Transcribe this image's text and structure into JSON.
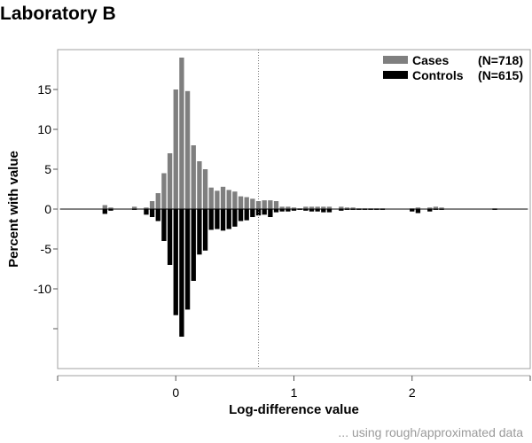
{
  "chart_data": {
    "type": "bar",
    "title": "Laboratory B",
    "xlabel": "Log-difference value",
    "ylabel": "Percent with value",
    "footnote": "... using rough/approximated data",
    "xlim": [
      -1,
      3
    ],
    "ylim": [
      -20,
      20
    ],
    "x_ticks": [
      -1,
      0,
      1,
      2,
      3
    ],
    "x_tick_labels": [
      "",
      "0",
      "1",
      "2",
      ""
    ],
    "y_ticks": [
      15,
      10,
      5,
      0,
      -5,
      -10,
      -15
    ],
    "y_tick_labels": [
      "15",
      "10",
      "5",
      "0",
      "-5",
      "-10",
      ""
    ],
    "reference_line_x": 0.7,
    "bar_width": 0.05,
    "grid": false,
    "legend_position": "top-right",
    "series": [
      {
        "name": "Cases",
        "n_label": "(N=718)",
        "color": "#7f7f7f",
        "direction": "up",
        "x": [
          -0.6,
          -0.55,
          -0.35,
          -0.25,
          -0.2,
          -0.15,
          -0.1,
          -0.05,
          0.0,
          0.05,
          0.1,
          0.15,
          0.2,
          0.25,
          0.3,
          0.35,
          0.4,
          0.45,
          0.5,
          0.55,
          0.6,
          0.65,
          0.7,
          0.75,
          0.8,
          0.85,
          0.9,
          0.95,
          1.0,
          1.05,
          1.1,
          1.15,
          1.2,
          1.25,
          1.3,
          1.4,
          1.45,
          1.5,
          1.55,
          1.6,
          1.65,
          1.7,
          1.75,
          2.0,
          2.05,
          2.15,
          2.2,
          2.25,
          2.7
        ],
        "values": [
          0.5,
          0.2,
          0.3,
          0.2,
          1.0,
          2.0,
          4.5,
          7.0,
          15.0,
          19.0,
          14.8,
          8.0,
          6.0,
          5.0,
          2.7,
          2.3,
          2.8,
          2.4,
          2.2,
          1.6,
          1.5,
          1.3,
          1.0,
          1.1,
          1.1,
          1.0,
          0.3,
          0.3,
          0.2,
          0.1,
          0.3,
          0.3,
          0.3,
          0.3,
          0.3,
          0.3,
          0.2,
          0.2,
          0.1,
          0.1,
          0.1,
          0.1,
          0.1,
          0.1,
          0.2,
          0.2,
          0.3,
          0.2,
          0.1
        ]
      },
      {
        "name": "Controls",
        "n_label": "(N=615)",
        "color": "#000000",
        "direction": "down",
        "x": [
          -0.6,
          -0.55,
          -0.35,
          -0.25,
          -0.2,
          -0.15,
          -0.1,
          -0.05,
          0.0,
          0.05,
          0.1,
          0.15,
          0.2,
          0.25,
          0.3,
          0.35,
          0.4,
          0.45,
          0.5,
          0.55,
          0.6,
          0.65,
          0.7,
          0.75,
          0.8,
          0.85,
          0.9,
          0.95,
          1.0,
          1.05,
          1.1,
          1.15,
          1.2,
          1.25,
          1.3,
          1.4,
          1.45,
          1.5,
          1.55,
          1.6,
          1.65,
          1.7,
          1.75,
          2.0,
          2.05,
          2.15,
          2.2,
          2.25,
          2.7
        ],
        "values": [
          -0.6,
          -0.2,
          -0.1,
          -0.7,
          -1.0,
          -1.5,
          -4.0,
          -7.0,
          -13.3,
          -16.0,
          -12.6,
          -9.0,
          -5.7,
          -5.2,
          -2.6,
          -2.5,
          -2.7,
          -2.5,
          -2.2,
          -1.5,
          -1.4,
          -1.0,
          -0.8,
          -0.7,
          -1.0,
          -0.4,
          -0.3,
          -0.3,
          -0.2,
          -0.1,
          -0.2,
          -0.3,
          -0.3,
          -0.4,
          -0.4,
          -0.2,
          -0.1,
          -0.1,
          -0.1,
          -0.1,
          -0.1,
          -0.1,
          -0.1,
          -0.3,
          -0.5,
          -0.3,
          -0.1,
          -0.1,
          -0.1
        ]
      }
    ]
  }
}
